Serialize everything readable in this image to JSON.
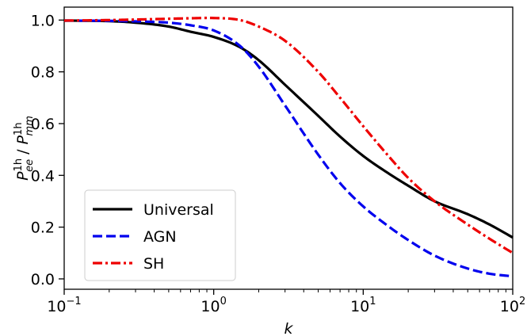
{
  "chart_data": {
    "type": "line",
    "title": "",
    "xlabel": "k",
    "ylabel": "P_ee^1h / P_mm^1h",
    "ylabel_parts": {
      "left_base": "P",
      "left_sup": "1h",
      "left_sub": "ee",
      "sep": " / ",
      "right_base": "P",
      "right_sup": "1h",
      "right_sub": "mm"
    },
    "x_scale": "log",
    "xlim": [
      0.1,
      100
    ],
    "ylim": [
      -0.04,
      1.05
    ],
    "x_ticks": [
      {
        "value": 0.1,
        "base": "10",
        "exp": "−1"
      },
      {
        "value": 1,
        "base": "10",
        "exp": "0"
      },
      {
        "value": 10,
        "base": "10",
        "exp": "1"
      },
      {
        "value": 100,
        "base": "10",
        "exp": "2"
      }
    ],
    "y_ticks": [
      {
        "value": 0.0,
        "label": "0.0"
      },
      {
        "value": 0.2,
        "label": "0.2"
      },
      {
        "value": 0.4,
        "label": "0.4"
      },
      {
        "value": 0.6,
        "label": "0.6"
      },
      {
        "value": 0.8,
        "label": "0.8"
      },
      {
        "value": 1.0,
        "label": "1.0"
      }
    ],
    "grid": false,
    "legend_position": "lower-left",
    "series": [
      {
        "name": "Universal",
        "color": "#000000",
        "style": "solid",
        "x": [
          0.1,
          0.2,
          0.3,
          0.5,
          0.7,
          1.0,
          1.5,
          2.0,
          3.0,
          5.0,
          7.0,
          10,
          15,
          20,
          30,
          50,
          70,
          100
        ],
        "y": [
          0.998,
          0.996,
          0.99,
          0.975,
          0.955,
          0.935,
          0.895,
          0.845,
          0.75,
          0.63,
          0.55,
          0.475,
          0.405,
          0.36,
          0.3,
          0.25,
          0.21,
          0.16
        ]
      },
      {
        "name": "AGN",
        "color": "#0000ee",
        "style": "dashed",
        "x": [
          0.1,
          0.2,
          0.3,
          0.5,
          0.7,
          1.0,
          1.5,
          2.0,
          3.0,
          5.0,
          7.0,
          10,
          15,
          20,
          30,
          50,
          70,
          100
        ],
        "y": [
          0.998,
          0.997,
          0.995,
          0.99,
          0.98,
          0.96,
          0.9,
          0.82,
          0.67,
          0.48,
          0.37,
          0.28,
          0.2,
          0.15,
          0.09,
          0.04,
          0.02,
          0.01
        ]
      },
      {
        "name": "SH",
        "color": "#ee0000",
        "style": "dashdot",
        "x": [
          0.1,
          0.2,
          0.3,
          0.5,
          0.7,
          1.0,
          1.5,
          2.0,
          3.0,
          5.0,
          7.0,
          10,
          15,
          20,
          30,
          50,
          70,
          100
        ],
        "y": [
          0.998,
          1.0,
          1.002,
          1.005,
          1.007,
          1.008,
          1.0,
          0.975,
          0.92,
          0.8,
          0.7,
          0.59,
          0.47,
          0.39,
          0.3,
          0.21,
          0.155,
          0.1
        ]
      }
    ]
  }
}
